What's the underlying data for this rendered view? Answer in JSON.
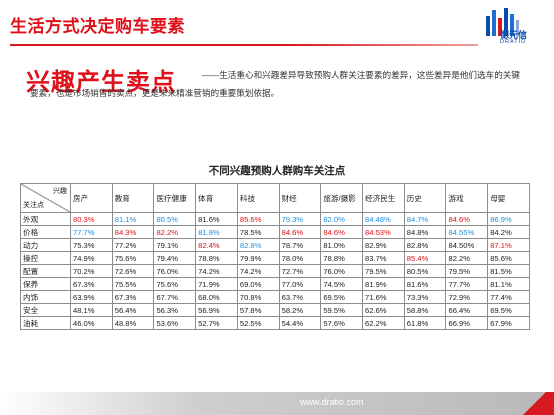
{
  "header": {
    "title": "生活方式决定购车要素",
    "logo_text": "德元信",
    "logo_en": "DRATIO"
  },
  "intro": {
    "heading": "兴趣产生卖点",
    "body": "——生活重心和兴趣差异导致预购人群关注要素的差异，这些差异是他们选车的关键要素，也是市场销售的卖点，更是未来精准营销的重要策划依据。"
  },
  "table": {
    "title": "不同兴趣预购人群购车关注点",
    "corner_interest": "兴趣",
    "corner_focus": "关注点",
    "columns": [
      "房产",
      "教育",
      "医疗健康",
      "体育",
      "科技",
      "财经",
      "旅游/摄影",
      "经济民生",
      "历史",
      "游戏",
      "母婴"
    ],
    "rows": [
      {
        "label": "外观",
        "values": [
          "80.3%",
          "81.1%",
          "80.5%",
          "81.6%",
          "85.6%",
          "79.3%",
          "82.0%",
          "84.48%",
          "84.7%",
          "84.6%",
          "86.9%"
        ]
      },
      {
        "label": "价格",
        "values": [
          "77.7%",
          "84.3%",
          "82.2%",
          "81.8%",
          "78.5%",
          "84.6%",
          "84.6%",
          "84.53%",
          "84.8%",
          "84.55%",
          "84.2%"
        ]
      },
      {
        "label": "动力",
        "values": [
          "75.3%",
          "77.2%",
          "79.1%",
          "82.4%",
          "82.8%",
          "78.7%",
          "81.0%",
          "82.9%",
          "82.8%",
          "84.50%",
          "87.1%"
        ]
      },
      {
        "label": "操控",
        "values": [
          "74.9%",
          "75.6%",
          "79.4%",
          "78.8%",
          "79.9%",
          "78.0%",
          "78.8%",
          "83.7%",
          "85.4%",
          "82.2%",
          "85.6%"
        ]
      },
      {
        "label": "配置",
        "values": [
          "70.2%",
          "72.6%",
          "76.0%",
          "74.2%",
          "74.2%",
          "72.7%",
          "76.0%",
          "79.5%",
          "80.5%",
          "79.5%",
          "81.5%"
        ]
      },
      {
        "label": "保养",
        "values": [
          "67.3%",
          "75.5%",
          "75.6%",
          "71.9%",
          "69.0%",
          "77.0%",
          "74.5%",
          "81.9%",
          "81.6%",
          "77.7%",
          "81.1%"
        ]
      },
      {
        "label": "内饰",
        "values": [
          "63.9%",
          "67.3%",
          "67.7%",
          "68.0%",
          "70.8%",
          "63.7%",
          "69.5%",
          "71.6%",
          "73.3%",
          "72.9%",
          "77.4%"
        ]
      },
      {
        "label": "安全",
        "values": [
          "48.1%",
          "56.4%",
          "56.3%",
          "56.9%",
          "57.8%",
          "58.2%",
          "59.5%",
          "62.6%",
          "58.8%",
          "66.4%",
          "69.5%"
        ]
      },
      {
        "label": "油耗",
        "values": [
          "46.0%",
          "48.8%",
          "53.6%",
          "52.7%",
          "52.5%",
          "54.4%",
          "57.6%",
          "62.2%",
          "61.8%",
          "66.9%",
          "67.9%"
        ]
      }
    ],
    "highlights": [
      [
        "red",
        "blue",
        "blue",
        "",
        "red",
        "blue",
        "blue",
        "blue",
        "blue",
        "red",
        "blue"
      ],
      [
        "blue",
        "red",
        "red",
        "blue",
        "",
        "red",
        "red",
        "red",
        "",
        "blue",
        ""
      ],
      [
        "",
        "",
        "",
        "red",
        "blue",
        "",
        "",
        "",
        "",
        "",
        "red"
      ],
      [
        "",
        "",
        "",
        "",
        "",
        "",
        "",
        "",
        "red",
        "",
        ""
      ],
      [
        "",
        "",
        "",
        "",
        "",
        "",
        "",
        "",
        "",
        "",
        ""
      ],
      [
        "",
        "",
        "",
        "",
        "",
        "",
        "",
        "",
        "",
        "",
        ""
      ],
      [
        "",
        "",
        "",
        "",
        "",
        "",
        "",
        "",
        "",
        "",
        ""
      ],
      [
        "",
        "",
        "",
        "",
        "",
        "",
        "",
        "",
        "",
        "",
        ""
      ],
      [
        "",
        "",
        "",
        "",
        "",
        "",
        "",
        "",
        "",
        "",
        ""
      ]
    ],
    "colors": {
      "red": "#e0101a",
      "blue": "#1f8fe0"
    }
  },
  "footer": {
    "url": "www.dratio.com"
  }
}
